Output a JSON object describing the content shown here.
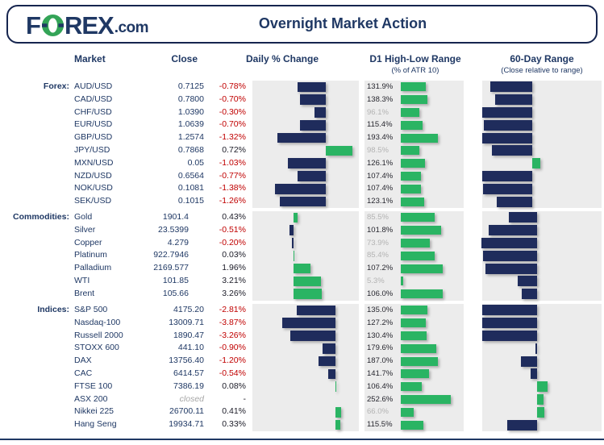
{
  "header": {
    "logo_f": "F",
    "logo_rex": "REX",
    "logo_com": ".com",
    "title": "Overnight Market Action"
  },
  "columns": {
    "market": "Market",
    "close": "Close",
    "daily": "Daily % Change",
    "d1": "D1 High-Low Range",
    "d1_sub": "(% of ATR 10)",
    "sixty": "60-Day Range",
    "sixty_sub": "(Close relative to range)"
  },
  "colors": {
    "navy_text": "#1f3864",
    "border_navy": "#16254f",
    "navy_bar": "#1f2c5c",
    "green_bar": "#2ab463",
    "logo_green": "#33a457",
    "negative_text": "#c00000",
    "positive_text": "#1c1c28",
    "gray_text": "#b3b3b3",
    "panel_gray": "#ececec"
  },
  "chart_data": [
    {
      "type": "bar",
      "group": "Forex:",
      "daily_axis": [
        -2.0,
        0.9
      ],
      "d1_axis": [
        0,
        330
      ],
      "sixty_zero_frac": 0.419,
      "rows": [
        {
          "market": "AUD/USD",
          "close": "0.7125",
          "daily": -0.78,
          "daily_label": "-0.78%",
          "d1": 131.9,
          "d1_label": "131.9%",
          "sixty": -52
        },
        {
          "market": "CAD/USD",
          "close": "0.7800",
          "daily": -0.7,
          "daily_label": "-0.70%",
          "d1": 138.3,
          "d1_label": "138.3%",
          "sixty": -46
        },
        {
          "market": "CHF/USD",
          "close": "1.0390",
          "daily": -0.3,
          "daily_label": "-0.30%",
          "d1": 96.1,
          "d1_label": "96.1%",
          "sixty": -62
        },
        {
          "market": "EUR/USD",
          "close": "1.0639",
          "daily": -0.7,
          "daily_label": "-0.70%",
          "d1": 115.4,
          "d1_label": "115.4%",
          "sixty": -60
        },
        {
          "market": "GBP/USD",
          "close": "1.2574",
          "daily": -1.32,
          "daily_label": "-1.32%",
          "d1": 193.4,
          "d1_label": "193.4%",
          "sixty": -62
        },
        {
          "market": "JPY/USD",
          "close": "0.7868",
          "daily": 0.72,
          "daily_label": "0.72%",
          "d1": 98.5,
          "d1_label": "98.5%",
          "sixty": -50
        },
        {
          "market": "MXN/USD",
          "close": "0.05",
          "daily": -1.03,
          "daily_label": "-1.03%",
          "d1": 126.1,
          "d1_label": "126.1%",
          "sixty": 10
        },
        {
          "market": "NZD/USD",
          "close": "0.6564",
          "daily": -0.77,
          "daily_label": "-0.77%",
          "d1": 107.4,
          "d1_label": "107.4%",
          "sixty": -62
        },
        {
          "market": "NOK/USD",
          "close": "0.1081",
          "daily": -1.38,
          "daily_label": "-1.38%",
          "d1": 107.4,
          "d1_label": "107.4%",
          "sixty": -61
        },
        {
          "market": "SEK/USD",
          "close": "0.1015",
          "daily": -1.26,
          "daily_label": "-1.26%",
          "d1": 123.1,
          "d1_label": "123.1%",
          "sixty": -44
        }
      ]
    },
    {
      "type": "bar",
      "group": "Commodities:",
      "daily_axis": [
        -4.8,
        7.6
      ],
      "d1_axis": [
        0,
        160
      ],
      "sixty_zero_frac": 0.459,
      "rows": [
        {
          "market": "Gold",
          "close": "1901.4",
          "daily": 0.43,
          "daily_label": "0.43%",
          "d1": 85.5,
          "d1_label": "85.5%",
          "sixty": -35
        },
        {
          "market": "Silver",
          "close": "23.5399",
          "daily": -0.51,
          "daily_label": "-0.51%",
          "d1": 101.8,
          "d1_label": "101.8%",
          "sixty": -60
        },
        {
          "market": "Copper",
          "close": "4.279",
          "daily": -0.2,
          "daily_label": "-0.20%",
          "d1": 73.9,
          "d1_label": "73.9%",
          "sixty": -69
        },
        {
          "market": "Platinum",
          "close": "922.7946",
          "daily": 0.03,
          "daily_label": "0.03%",
          "d1": 85.4,
          "d1_label": "85.4%",
          "sixty": -67
        },
        {
          "market": "Palladium",
          "close": "2169.577",
          "daily": 1.96,
          "daily_label": "1.96%",
          "d1": 107.2,
          "d1_label": "107.2%",
          "sixty": -64
        },
        {
          "market": "WTI",
          "close": "101.85",
          "daily": 3.21,
          "daily_label": "3.21%",
          "d1": 5.3,
          "d1_label": "5.3%",
          "sixty": -24
        },
        {
          "market": "Brent",
          "close": "105.66",
          "daily": 3.26,
          "daily_label": "3.26%",
          "d1": 106.0,
          "d1_label": "106.0%",
          "sixty": -19
        }
      ]
    },
    {
      "type": "bar",
      "group": "Indices:",
      "daily_axis": [
        -6.0,
        1.7
      ],
      "d1_axis": [
        0,
        320
      ],
      "sixty_zero_frac": 0.459,
      "rows": [
        {
          "market": "S&P 500",
          "close": "4175.20",
          "daily": -2.81,
          "daily_label": "-2.81%",
          "d1": 135.0,
          "d1_label": "135.0%",
          "sixty": -68
        },
        {
          "market": "Nasdaq-100",
          "close": "13009.71",
          "daily": -3.87,
          "daily_label": "-3.87%",
          "d1": 127.2,
          "d1_label": "127.2%",
          "sixty": -68
        },
        {
          "market": "Russell 2000",
          "close": "1890.47",
          "daily": -3.26,
          "daily_label": "-3.26%",
          "d1": 130.4,
          "d1_label": "130.4%",
          "sixty": -68
        },
        {
          "market": "STOXX 600",
          "close": "441.10",
          "daily": -0.9,
          "daily_label": "-0.90%",
          "d1": 179.6,
          "d1_label": "179.6%",
          "sixty": -2
        },
        {
          "market": "DAX",
          "close": "13756.40",
          "daily": -1.2,
          "daily_label": "-1.20%",
          "d1": 187.0,
          "d1_label": "187.0%",
          "sixty": -20
        },
        {
          "market": "CAC",
          "close": "6414.57",
          "daily": -0.54,
          "daily_label": "-0.54%",
          "d1": 141.7,
          "d1_label": "141.7%",
          "sixty": -8
        },
        {
          "market": "FTSE 100",
          "close": "7386.19",
          "daily": 0.08,
          "daily_label": "0.08%",
          "d1": 106.4,
          "d1_label": "106.4%",
          "sixty": 13
        },
        {
          "market": "ASX 200",
          "close": "closed",
          "daily": null,
          "daily_label": "-",
          "d1": 252.6,
          "d1_label": "252.6%",
          "sixty": 8
        },
        {
          "market": "Nikkei 225",
          "close": "26700.11",
          "daily": 0.41,
          "daily_label": "0.41%",
          "d1": 66.0,
          "d1_label": "66.0%",
          "sixty": 9
        },
        {
          "market": "Hang Seng",
          "close": "19934.71",
          "daily": 0.33,
          "daily_label": "0.33%",
          "d1": 115.5,
          "d1_label": "115.5%",
          "sixty": -37
        }
      ]
    }
  ]
}
